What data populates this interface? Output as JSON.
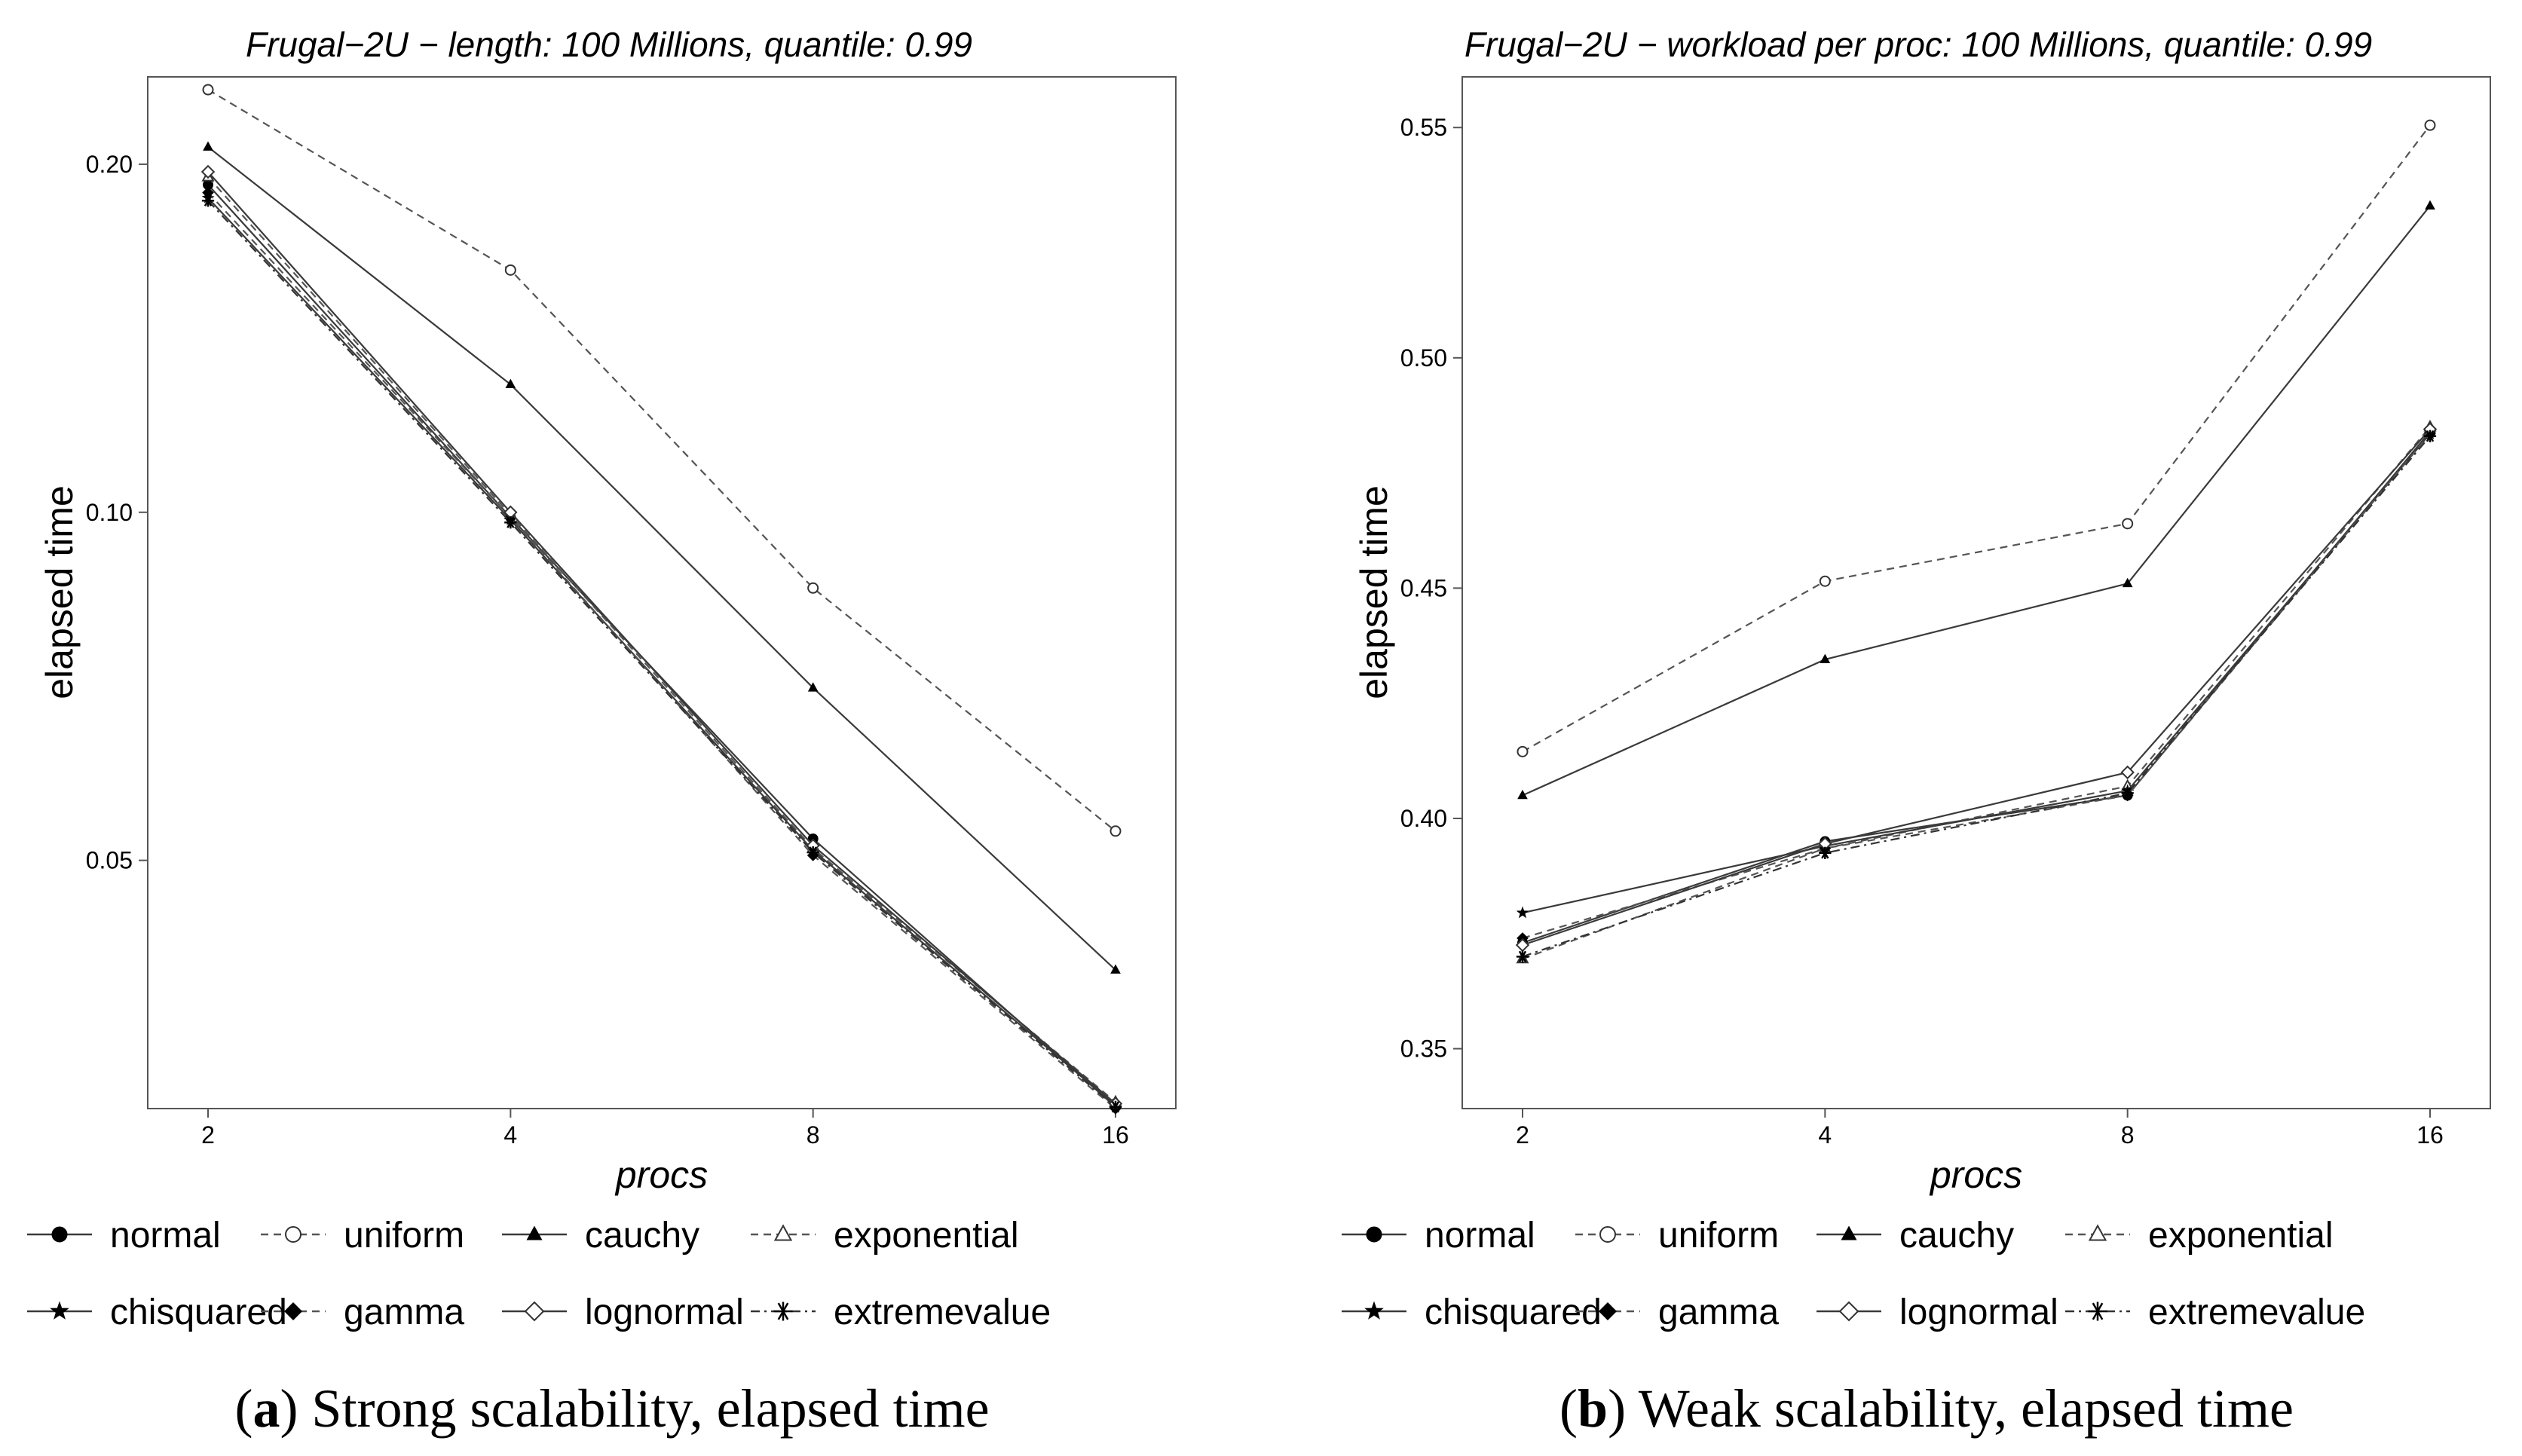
{
  "chart_data": [
    {
      "type": "line",
      "title": "Frugal−2U − length: 100 Millions, quantile: 0.99",
      "xlabel": "procs",
      "ylabel": "elapsed time",
      "x": [
        2,
        4,
        8,
        16
      ],
      "xticks": [
        "2",
        "4",
        "8",
        "16"
      ],
      "yscale": "log",
      "ylim": [
        0.0305,
        0.238
      ],
      "yticks": [
        "0.05",
        "0.10",
        "0.20"
      ],
      "ytick_values": [
        0.05,
        0.1,
        0.2
      ],
      "caption_letter": "a",
      "caption_text": "Strong scalability, elapsed time",
      "series": [
        {
          "name": "normal",
          "marker": "circle-filled",
          "dash": "solid",
          "values": [
            0.192,
            0.099,
            0.0522,
            0.0306
          ]
        },
        {
          "name": "uniform",
          "marker": "circle-open",
          "dash": "dashed",
          "values": [
            0.232,
            0.162,
            0.086,
            0.053
          ]
        },
        {
          "name": "cauchy",
          "marker": "triangle-filled",
          "dash": "solid",
          "values": [
            0.207,
            0.129,
            0.0705,
            0.0402
          ]
        },
        {
          "name": "exponential",
          "marker": "triangle-open",
          "dash": "dashed",
          "values": [
            0.195,
            0.0995,
            0.0512,
            0.0309
          ]
        },
        {
          "name": "chisquared",
          "marker": "star-filled",
          "dash": "solid",
          "values": [
            0.187,
            0.0985,
            0.051,
            0.0307
          ]
        },
        {
          "name": "gamma",
          "marker": "diamond-filled",
          "dash": "dashed",
          "values": [
            0.189,
            0.099,
            0.0505,
            0.0305
          ]
        },
        {
          "name": "lognormal",
          "marker": "diamond-open",
          "dash": "solid",
          "values": [
            0.197,
            0.1,
            0.0515,
            0.0308
          ]
        },
        {
          "name": "extremevalue",
          "marker": "asterisk",
          "dash": "dashdot",
          "values": [
            0.186,
            0.098,
            0.0508,
            0.0306
          ]
        }
      ]
    },
    {
      "type": "line",
      "title": "Frugal−2U − workload per proc: 100 Millions, quantile: 0.99",
      "xlabel": "procs",
      "ylabel": "elapsed time",
      "x": [
        2,
        4,
        8,
        16
      ],
      "xticks": [
        "2",
        "4",
        "8",
        "16"
      ],
      "yscale": "linear",
      "ylim": [
        0.337,
        0.561
      ],
      "yticks": [
        "0.35",
        "0.40",
        "0.45",
        "0.50",
        "0.55"
      ],
      "ytick_values": [
        0.35,
        0.4,
        0.45,
        0.5,
        0.55
      ],
      "caption_letter": "b",
      "caption_text": "Weak scalability, elapsed time",
      "series": [
        {
          "name": "normal",
          "marker": "circle-filled",
          "dash": "solid",
          "values": [
            0.373,
            0.395,
            0.405,
            0.484
          ]
        },
        {
          "name": "uniform",
          "marker": "circle-open",
          "dash": "dashed",
          "values": [
            0.4145,
            0.4515,
            0.464,
            0.5505
          ]
        },
        {
          "name": "cauchy",
          "marker": "triangle-filled",
          "dash": "solid",
          "values": [
            0.405,
            0.4345,
            0.451,
            0.533
          ]
        },
        {
          "name": "exponential",
          "marker": "triangle-open",
          "dash": "dashed",
          "values": [
            0.3695,
            0.3935,
            0.407,
            0.485
          ]
        },
        {
          "name": "chisquared",
          "marker": "star-filled",
          "dash": "solid",
          "values": [
            0.3795,
            0.394,
            0.406,
            0.4835
          ]
        },
        {
          "name": "gamma",
          "marker": "diamond-filled",
          "dash": "dashed",
          "values": [
            0.374,
            0.3935,
            0.405,
            0.4835
          ]
        },
        {
          "name": "lognormal",
          "marker": "diamond-open",
          "dash": "solid",
          "values": [
            0.3725,
            0.3945,
            0.41,
            0.4845
          ]
        },
        {
          "name": "extremevalue",
          "marker": "asterisk",
          "dash": "dashdot",
          "values": [
            0.37,
            0.3925,
            0.4055,
            0.483
          ]
        }
      ]
    }
  ],
  "legend": {
    "entries": [
      "normal",
      "uniform",
      "cauchy",
      "exponential",
      "chisquared",
      "gamma",
      "lognormal",
      "extremevalue"
    ]
  }
}
